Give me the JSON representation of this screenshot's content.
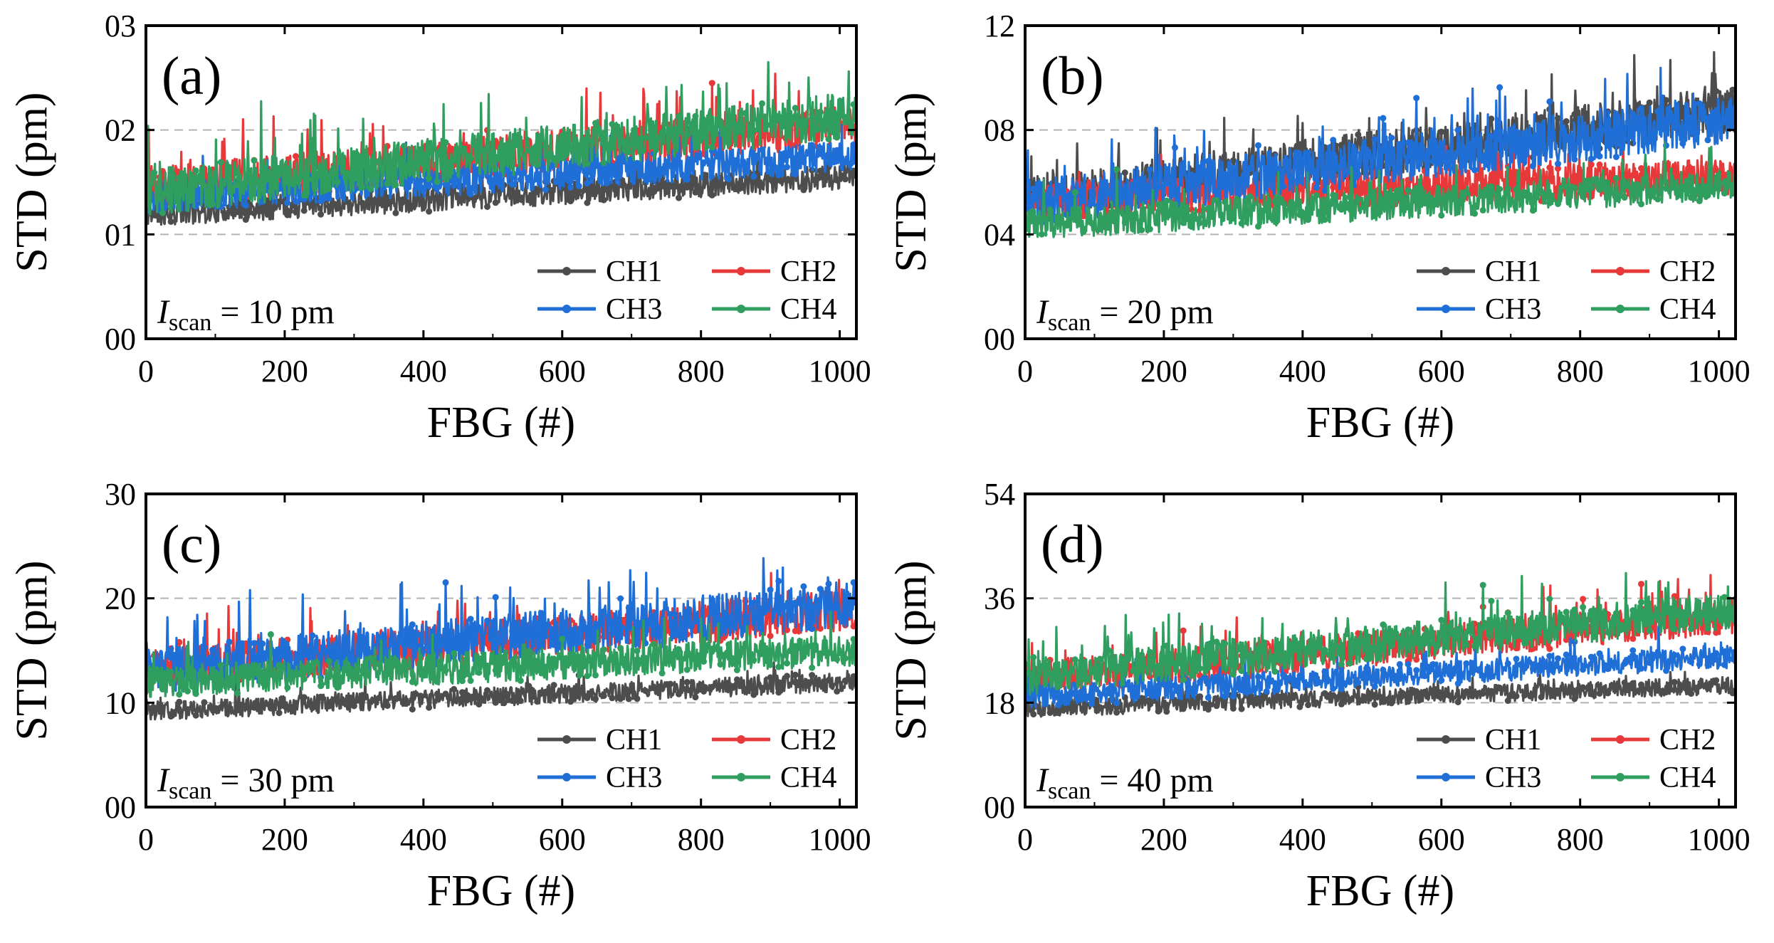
{
  "figure": {
    "legend_columns": 2
  },
  "chart_data": [
    {
      "type": "line",
      "panel_label": "(a)",
      "xlabel": "FBG (#)",
      "ylabel": "STD (pm)",
      "annotation": {
        "symbol": "I",
        "subscript": "scan",
        "rest": " = 10 pm"
      },
      "xlim": [
        0,
        1024
      ],
      "ylim": [
        0,
        0.3
      ],
      "xticks": [
        0,
        200,
        400,
        600,
        800,
        1000
      ],
      "xtick_labels": [
        "0",
        "200",
        "400",
        "600",
        "800",
        "1000"
      ],
      "yticks": [
        0,
        0.1,
        0.2,
        0.3
      ],
      "ytick_labels": [
        "00",
        "01",
        "02",
        "03"
      ],
      "grid": "horizontal dashed",
      "legend_position": "bottom-right",
      "n_points": 1024,
      "series": [
        {
          "name": "CH1",
          "color": "#4d4d4d",
          "start": 0.12,
          "end": 0.155,
          "noise": 0.012,
          "spike": 0.02,
          "seed": 11
        },
        {
          "name": "CH2",
          "color": "#e8393a",
          "start": 0.145,
          "end": 0.205,
          "noise": 0.02,
          "spike": 0.05,
          "seed": 12
        },
        {
          "name": "CH3",
          "color": "#1f6fd6",
          "start": 0.135,
          "end": 0.175,
          "noise": 0.015,
          "spike": 0.035,
          "seed": 13
        },
        {
          "name": "CH4",
          "color": "#2f9e5f",
          "start": 0.14,
          "end": 0.215,
          "noise": 0.022,
          "spike": 0.06,
          "seed": 14
        }
      ]
    },
    {
      "type": "line",
      "panel_label": "(b)",
      "xlabel": "FBG (#)",
      "ylabel": "STD (pm)",
      "annotation": {
        "symbol": "I",
        "subscript": "scan",
        "rest": " = 20 pm"
      },
      "xlim": [
        0,
        1024
      ],
      "ylim": [
        0,
        12
      ],
      "xticks": [
        0,
        200,
        400,
        600,
        800,
        1000
      ],
      "xtick_labels": [
        "0",
        "200",
        "400",
        "600",
        "800",
        "1000"
      ],
      "yticks": [
        0,
        4,
        8,
        12
      ],
      "ytick_labels": [
        "00",
        "04",
        "08",
        "12"
      ],
      "grid": "horizontal dashed",
      "legend_position": "bottom-right",
      "n_points": 1024,
      "series": [
        {
          "name": "CH1",
          "color": "#4d4d4d",
          "start": 5.4,
          "end": 8.8,
          "noise": 0.9,
          "spike": 2.0,
          "seed": 21
        },
        {
          "name": "CH2",
          "color": "#e8393a",
          "start": 5.3,
          "end": 6.2,
          "noise": 0.7,
          "spike": 1.2,
          "seed": 22
        },
        {
          "name": "CH3",
          "color": "#1f6fd6",
          "start": 5.2,
          "end": 8.4,
          "noise": 0.9,
          "spike": 2.0,
          "seed": 23
        },
        {
          "name": "CH4",
          "color": "#2f9e5f",
          "start": 4.4,
          "end": 5.9,
          "noise": 0.6,
          "spike": 1.4,
          "seed": 24
        }
      ]
    },
    {
      "type": "line",
      "panel_label": "(c)",
      "xlabel": "FBG (#)",
      "ylabel": "STD (pm)",
      "annotation": {
        "symbol": "I",
        "subscript": "scan",
        "rest": " = 30 pm"
      },
      "xlim": [
        0,
        1024
      ],
      "ylim": [
        0,
        30
      ],
      "xticks": [
        0,
        200,
        400,
        600,
        800,
        1000
      ],
      "xtick_labels": [
        "0",
        "200",
        "400",
        "600",
        "800",
        "1000"
      ],
      "yticks": [
        0,
        10,
        20,
        30
      ],
      "ytick_labels": [
        "00",
        "10",
        "20",
        "30"
      ],
      "grid": "horizontal dashed",
      "legend_position": "bottom-right",
      "n_points": 1024,
      "series": [
        {
          "name": "CH1",
          "color": "#4d4d4d",
          "start": 9.2,
          "end": 12.0,
          "noise": 0.9,
          "spike": 1.5,
          "seed": 31
        },
        {
          "name": "CH2",
          "color": "#e8393a",
          "start": 13.0,
          "end": 19.0,
          "noise": 2.0,
          "spike": 4.5,
          "seed": 32
        },
        {
          "name": "CH3",
          "color": "#1f6fd6",
          "start": 13.0,
          "end": 19.5,
          "noise": 2.2,
          "spike": 5.0,
          "seed": 33
        },
        {
          "name": "CH4",
          "color": "#2f9e5f",
          "start": 12.0,
          "end": 15.0,
          "noise": 1.5,
          "spike": 3.0,
          "seed": 34
        }
      ]
    },
    {
      "type": "line",
      "panel_label": "(d)",
      "xlabel": "FBG (#)",
      "ylabel": "STD (pm)",
      "annotation": {
        "symbol": "I",
        "subscript": "scan",
        "rest": " = 40 pm"
      },
      "xlim": [
        0,
        1024
      ],
      "ylim": [
        0,
        54
      ],
      "xticks": [
        0,
        200,
        400,
        600,
        800,
        1000
      ],
      "xtick_labels": [
        "0",
        "200",
        "400",
        "600",
        "800",
        "1000"
      ],
      "yticks": [
        0,
        18,
        36,
        54
      ],
      "ytick_labels": [
        "00",
        "18",
        "36",
        "54"
      ],
      "grid": "horizontal dashed",
      "legend_position": "bottom-right",
      "n_points": 1024,
      "series": [
        {
          "name": "CH1",
          "color": "#4d4d4d",
          "start": 17.0,
          "end": 21.0,
          "noise": 1.5,
          "spike": 2.5,
          "seed": 41
        },
        {
          "name": "CH2",
          "color": "#e8393a",
          "start": 22.0,
          "end": 33.0,
          "noise": 3.0,
          "spike": 7.0,
          "seed": 42
        },
        {
          "name": "CH3",
          "color": "#1f6fd6",
          "start": 19.0,
          "end": 26.0,
          "noise": 2.0,
          "spike": 4.0,
          "seed": 43
        },
        {
          "name": "CH4",
          "color": "#2f9e5f",
          "start": 22.5,
          "end": 34.0,
          "noise": 3.2,
          "spike": 8.0,
          "seed": 44
        }
      ]
    }
  ]
}
